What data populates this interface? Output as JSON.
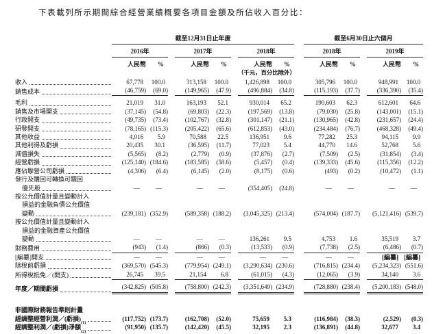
{
  "title": "下表載列所示期間綜合經營業績概要各項目金額及所佔收入百分比：",
  "table": {
    "period_headers": [
      "截至12月31日止年度",
      "截至6月30日止六個月"
    ],
    "year_headers": [
      "2016年",
      "2017年",
      "2018年",
      "2018年",
      "2019年"
    ],
    "col_headers": {
      "rmb": "人民幣",
      "pct": "%"
    },
    "unit_note": "（千元，百分比除外）",
    "rows": [
      {
        "label_lines": [
          "收入"
        ],
        "values": [
          "67,778",
          "100.0",
          "313,158",
          "100.0",
          "1,426,898",
          "100.0",
          "305,796",
          "100.0",
          "948,991",
          "100.0"
        ]
      },
      {
        "label_lines": [
          "銷售成本"
        ],
        "values": [
          "(46,759)",
          "(69.0)",
          "(149,965)",
          "(47.9)",
          "(496,884)",
          "(34.8)",
          "(115,193)",
          "(37.7)",
          "(336,390)",
          "(35.4)"
        ],
        "style": "u"
      },
      {
        "label_lines": [
          "毛利"
        ],
        "values": [
          "21,019",
          "31.0",
          "163,193",
          "52.1",
          "930,014",
          "65.2",
          "190,603",
          "62.3",
          "612,601",
          "64.6"
        ],
        "style": "padtop"
      },
      {
        "label_lines": [
          "銷售及市場開支"
        ],
        "values": [
          "(37,145)",
          "(54.8)",
          "(69,803)",
          "(22.3)",
          "(197,569)",
          "(13.8)",
          "(79,030)",
          "(25.8)",
          "(143,001)",
          "(15.1)"
        ]
      },
      {
        "label_lines": [
          "行政開支"
        ],
        "values": [
          "(49,735)",
          "(73.4)",
          "(102,767)",
          "(32.8)",
          "(301,147)",
          "(21.1)",
          "(130,965)",
          "(42.8)",
          "(231,657)",
          "(24.4)"
        ]
      },
      {
        "label_lines": [
          "研發開支"
        ],
        "values": [
          "(78,165)",
          "(115.3)",
          "(205,422)",
          "(65.6)",
          "(612,853)",
          "(43.0)",
          "(234,484)",
          "(76.7)",
          "(468,328)",
          "(49.4)"
        ]
      },
      {
        "label_lines": [
          "其他收益"
        ],
        "values": [
          "4,016",
          "5.9",
          "70,588",
          "22.5",
          "136,951",
          "9.6",
          "77,282",
          "25.3",
          "94,115",
          "9.9"
        ]
      },
      {
        "label_lines": [
          "其他利得及虧損"
        ],
        "values": [
          "20,435",
          "30.1",
          "(36,595)",
          "(11.7)",
          "77,023",
          "5.4",
          "44,770",
          "14.6",
          "52,768",
          "5.6"
        ]
      },
      {
        "label_lines": [
          "減值損失"
        ],
        "values": [
          "(5,565)",
          "(8.2)",
          "(2,779)",
          "(0.9)",
          "(37,876)",
          "(2.7)",
          "(7,509)",
          "(2.5)",
          "(31,854)",
          "(3.4)"
        ]
      },
      {
        "label_lines": [
          "經營虧損"
        ],
        "values": [
          "(125,140)",
          "(184.6)",
          "(183,585)",
          "(58.6)",
          "(5,457)",
          "(0.4)",
          "(139,333)",
          "(45.6)",
          "(115,356)",
          "(12.2)"
        ]
      },
      {
        "label_lines": [
          "應佔聯營公司虧損"
        ],
        "values": [
          "(4,306)",
          "(6.4)",
          "(6,145)",
          "(2.0)",
          "(8,175)",
          "(0.6)",
          "(493)",
          "(0.2)",
          "(10,472)",
          "(1.1)"
        ]
      },
      {
        "label_lines": [
          "發行及購回可轉換可贖回",
          "優先股"
        ],
        "values": [
          "—",
          "—",
          "—",
          "—",
          "(354,405)",
          "(24.8)",
          "—",
          "—",
          "—",
          "—"
        ]
      },
      {
        "label_lines": [
          "按公允價值計量且變動計入",
          "損益的金融負債公允價值",
          "變動"
        ],
        "values": [
          "(239,181)",
          "(352.9)",
          "(589,358)",
          "(188.2)",
          "(3,045,325)",
          "(213.4)",
          "(574,004)",
          "(187.7)",
          "(5,121,416)",
          "(539.7)"
        ]
      },
      {
        "label_lines": [
          "按公允價值計量且變動計入",
          "損益的金融資產公允價值",
          "變動"
        ],
        "values": [
          "—",
          "—",
          "—",
          "—",
          "136,261",
          "9.5",
          "4,753",
          "1.6",
          "35,519",
          "3.7"
        ]
      },
      {
        "label_lines": [
          "財務費用"
        ],
        "values": [
          "(943)",
          "(1.4)",
          "(866)",
          "(0.3)",
          "(13,533)",
          "(0.9)",
          "(7,738)",
          "(2.5)",
          "(6,486)",
          "(0.7)"
        ],
        "style": "u"
      },
      {
        "label_lines": [
          "[編纂]開支"
        ],
        "values": [
          "—",
          "—",
          "—",
          "—",
          "—",
          "—",
          "—",
          "—",
          "[編纂]",
          "[編纂]"
        ]
      },
      {
        "label_lines": [
          "除稅前虧損"
        ],
        "values": [
          "(369,570)",
          "(545.3)",
          "(779,954)",
          "(249.1)",
          "(3,290,634)",
          "(230.6)",
          "(716,815)",
          "(234.4)",
          "(5,234,323)",
          "(551.6)"
        ]
      },
      {
        "label_lines": [
          "所得稅抵免／(開支)"
        ],
        "values": [
          "26,745",
          "39.5",
          "21,154",
          "6.8",
          "(61,015)",
          "(4.3)",
          "(12,065)",
          "(3.9)",
          "34,140",
          "3.6"
        ],
        "style": "u"
      },
      {
        "label_lines": [
          "年度／期間虧損"
        ],
        "values": [
          "(342,825)",
          "(505.8)",
          "(758,800)",
          "(242.3)",
          "(3,351,649)",
          "(234.9)",
          "(728,880)",
          "(238.4)",
          "(5,200,183)",
          "(548.0)"
        ],
        "style": "uu lb padtop"
      },
      {
        "spacer": true
      },
      {
        "label_lines": [
          "非國際財務報告準則計量"
        ],
        "section": true,
        "style": "bold"
      },
      {
        "label_lines": [
          "經調整經營利潤／(虧損)"
        ],
        "sup": "(1)",
        "values": [
          "(117,752)",
          "(173.7)",
          "(162,708)",
          "(52.0)",
          "75,659",
          "5.3",
          "(116,984)",
          "(38.3)",
          "(2,529)",
          "(0.3)"
        ],
        "style": "bold"
      },
      {
        "label_lines": [
          "經調整利潤／(虧損)淨額"
        ],
        "sup": "(2)",
        "values": [
          "(91,950)",
          "(135.7)",
          "(142,420)",
          "(45.5)",
          "32,195",
          "2.3",
          "(136,891)",
          "(44.8)",
          "32,677",
          "3.4"
        ],
        "style": "bold"
      }
    ]
  }
}
